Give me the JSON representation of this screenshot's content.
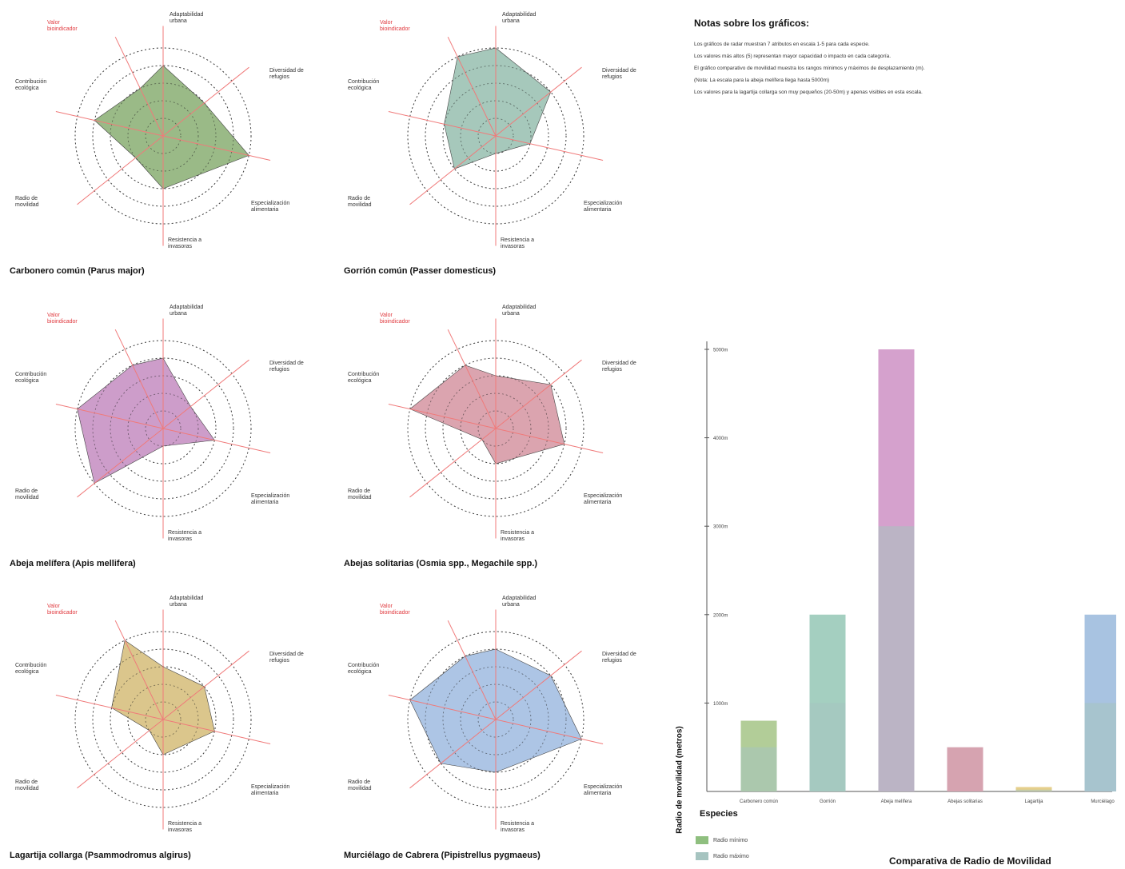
{
  "notes": {
    "title": "Notas sobre los gráficos:",
    "lines": [
      "Los gráficos de radar muestran 7 atributos en escala 1-5 para cada especie.",
      "Los valores más altos (5) representan mayor capacidad o impacto en cada categoría.",
      "El gráfico comparativo de movilidad muestra los rangos mínimos y máximos de desplazamiento (m).",
      "(Nota: La escala para la abeja melífera llega hasta 5000m)",
      "Los valores para la lagartija collarga son muy pequeños (20-50m) y apenas visibles en esta escala."
    ]
  },
  "radar_axes": [
    "Adaptabilidad urbana",
    "Diversidad de refugios",
    "Especialización alimentaria",
    "Resistencia a invasoras",
    "Radio de movilidad",
    "Contribución ecológica",
    "Valor bioindicador"
  ],
  "chart_data": [
    {
      "type": "radar",
      "title": "Carbonero común (Parus major)",
      "color": "#8fb27a",
      "categories": [
        "Adaptabilidad urbana",
        "Diversidad de refugios",
        "Especialización alimentaria",
        "Resistencia a invasoras",
        "Radio de movilidad",
        "Contribución ecológica",
        "Valor bioindicador"
      ],
      "values": [
        4,
        3,
        5,
        3,
        2,
        4,
        3
      ],
      "range": [
        0,
        5
      ]
    },
    {
      "type": "radar",
      "title": "Gorrión común (Passer domesticus)",
      "color": "#9cc2b4",
      "categories": [
        "Adaptabilidad urbana",
        "Diversidad de refugios",
        "Especialización alimentaria",
        "Resistencia a invasoras",
        "Radio de movilidad",
        "Contribución ecológica",
        "Valor bioindicador"
      ],
      "values": [
        5,
        4,
        2,
        1,
        3,
        3,
        5
      ],
      "range": [
        0,
        5
      ]
    },
    {
      "type": "radar",
      "title": "Abeja melífera (Apis mellifera)",
      "color": "#c892c4",
      "categories": [
        "Adaptabilidad urbana",
        "Diversidad de refugios",
        "Especialización alimentaria",
        "Resistencia a invasoras",
        "Radio de movilidad",
        "Contribución ecológica",
        "Valor bioindicador"
      ],
      "values": [
        4,
        2,
        3,
        1,
        5,
        5,
        4
      ],
      "range": [
        0,
        5
      ]
    },
    {
      "type": "radar",
      "title": "Abejas solitarias (Osmia spp., Megachile spp.)",
      "color": "#d79aa6",
      "categories": [
        "Adaptabilidad urbana",
        "Diversidad de refugios",
        "Especialización alimentaria",
        "Resistencia a invasoras",
        "Radio de movilidad",
        "Contribución ecológica",
        "Valor bioindicador"
      ],
      "values": [
        3,
        4,
        4,
        2,
        1,
        5,
        4
      ],
      "range": [
        0,
        5
      ]
    },
    {
      "type": "radar",
      "title": "Lagartija collarga (Psammodromus algirus)",
      "color": "#d7c080",
      "categories": [
        "Adaptabilidad urbana",
        "Diversidad de refugios",
        "Especialización alimentaria",
        "Resistencia a invasoras",
        "Radio de movilidad",
        "Contribución ecológica",
        "Valor bioindicador"
      ],
      "values": [
        3,
        3,
        3,
        2,
        1,
        3,
        5
      ],
      "range": [
        0,
        5
      ]
    },
    {
      "type": "radar",
      "title": "Murciélago de Cabrera (Pipistrellus pygmaeus)",
      "color": "#a4bfe2",
      "categories": [
        "Adaptabilidad urbana",
        "Diversidad de refugios",
        "Especialización alimentaria",
        "Resistencia a invasoras",
        "Radio de movilidad",
        "Contribución ecológica",
        "Valor bioindicador"
      ],
      "values": [
        4,
        4,
        5,
        3,
        4,
        5,
        4
      ],
      "range": [
        0,
        5
      ]
    },
    {
      "type": "bar",
      "title": "Comparativa de Radio de Movilidad",
      "xlabel": "Especies",
      "ylabel": "Radio de movilidad (metros)",
      "ylim": [
        0,
        5000
      ],
      "yticks": [
        "1000m",
        "2000m",
        "3000m",
        "4000m",
        "5000m"
      ],
      "ytick_values": [
        1000,
        2000,
        3000,
        4000,
        5000
      ],
      "categories": [
        "Carbonero común",
        "Gorrión",
        "Abeja melífera",
        "Abejas solitarias",
        "Lagartija",
        "Murciélago"
      ],
      "colors": [
        "#b2cd98",
        "#a4cfc0",
        "#d5a1cd",
        "#d6a3b0",
        "#e5cf8c",
        "#a8c3e1"
      ],
      "series": [
        {
          "name": "Radio mínimo",
          "values": [
            500,
            1000,
            3000,
            500,
            20,
            1000
          ]
        },
        {
          "name": "Radio máximo",
          "values": [
            800,
            2000,
            5000,
            500,
            50,
            2000
          ]
        }
      ],
      "legend": {
        "title": "Especies",
        "position": "bottom-left",
        "swatch_min": "#8fbf7f",
        "swatch_max": "#a6c4c0"
      },
      "grid": false
    }
  ]
}
